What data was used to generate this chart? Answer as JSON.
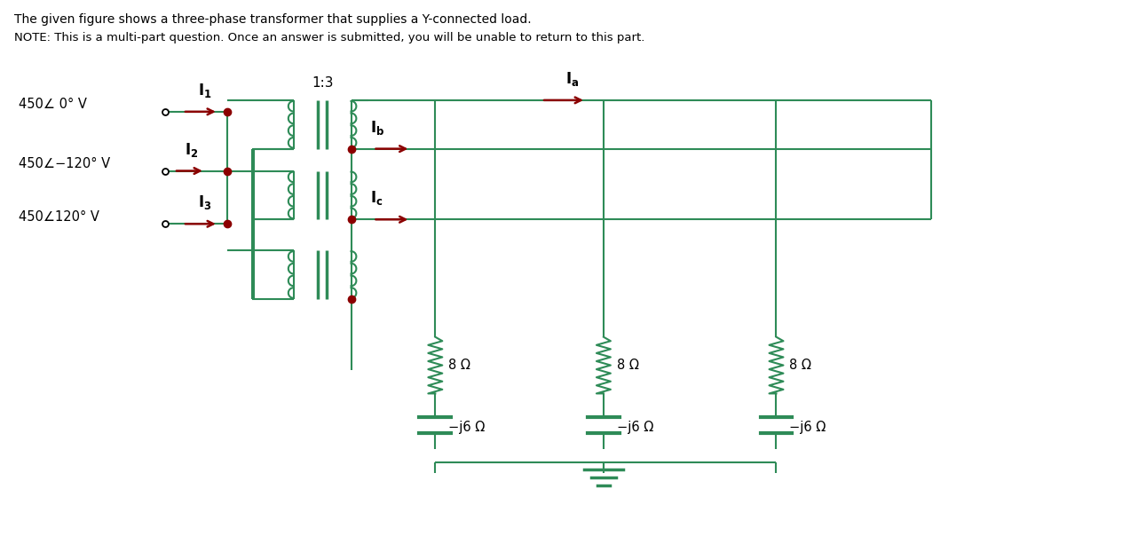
{
  "title_line1": "The given figure shows a three-phase transformer that supplies a Y-connected load.",
  "title_line2": "NOTE: This is a multi-part question. Once an answer is submitted, you will be unable to return to this part.",
  "bg_color": "#ffffff",
  "text_color": "#000000",
  "line_color": "#2e8b57",
  "dot_color": "#8b0000",
  "arrow_color": "#8b0000",
  "ratio_label": "1:3",
  "resistor_label": "8 Ω",
  "cap_label": "−j6 Ω",
  "v_labels": [
    "450∠ 0° V",
    "450∠−120° V",
    "450∠120° V"
  ]
}
